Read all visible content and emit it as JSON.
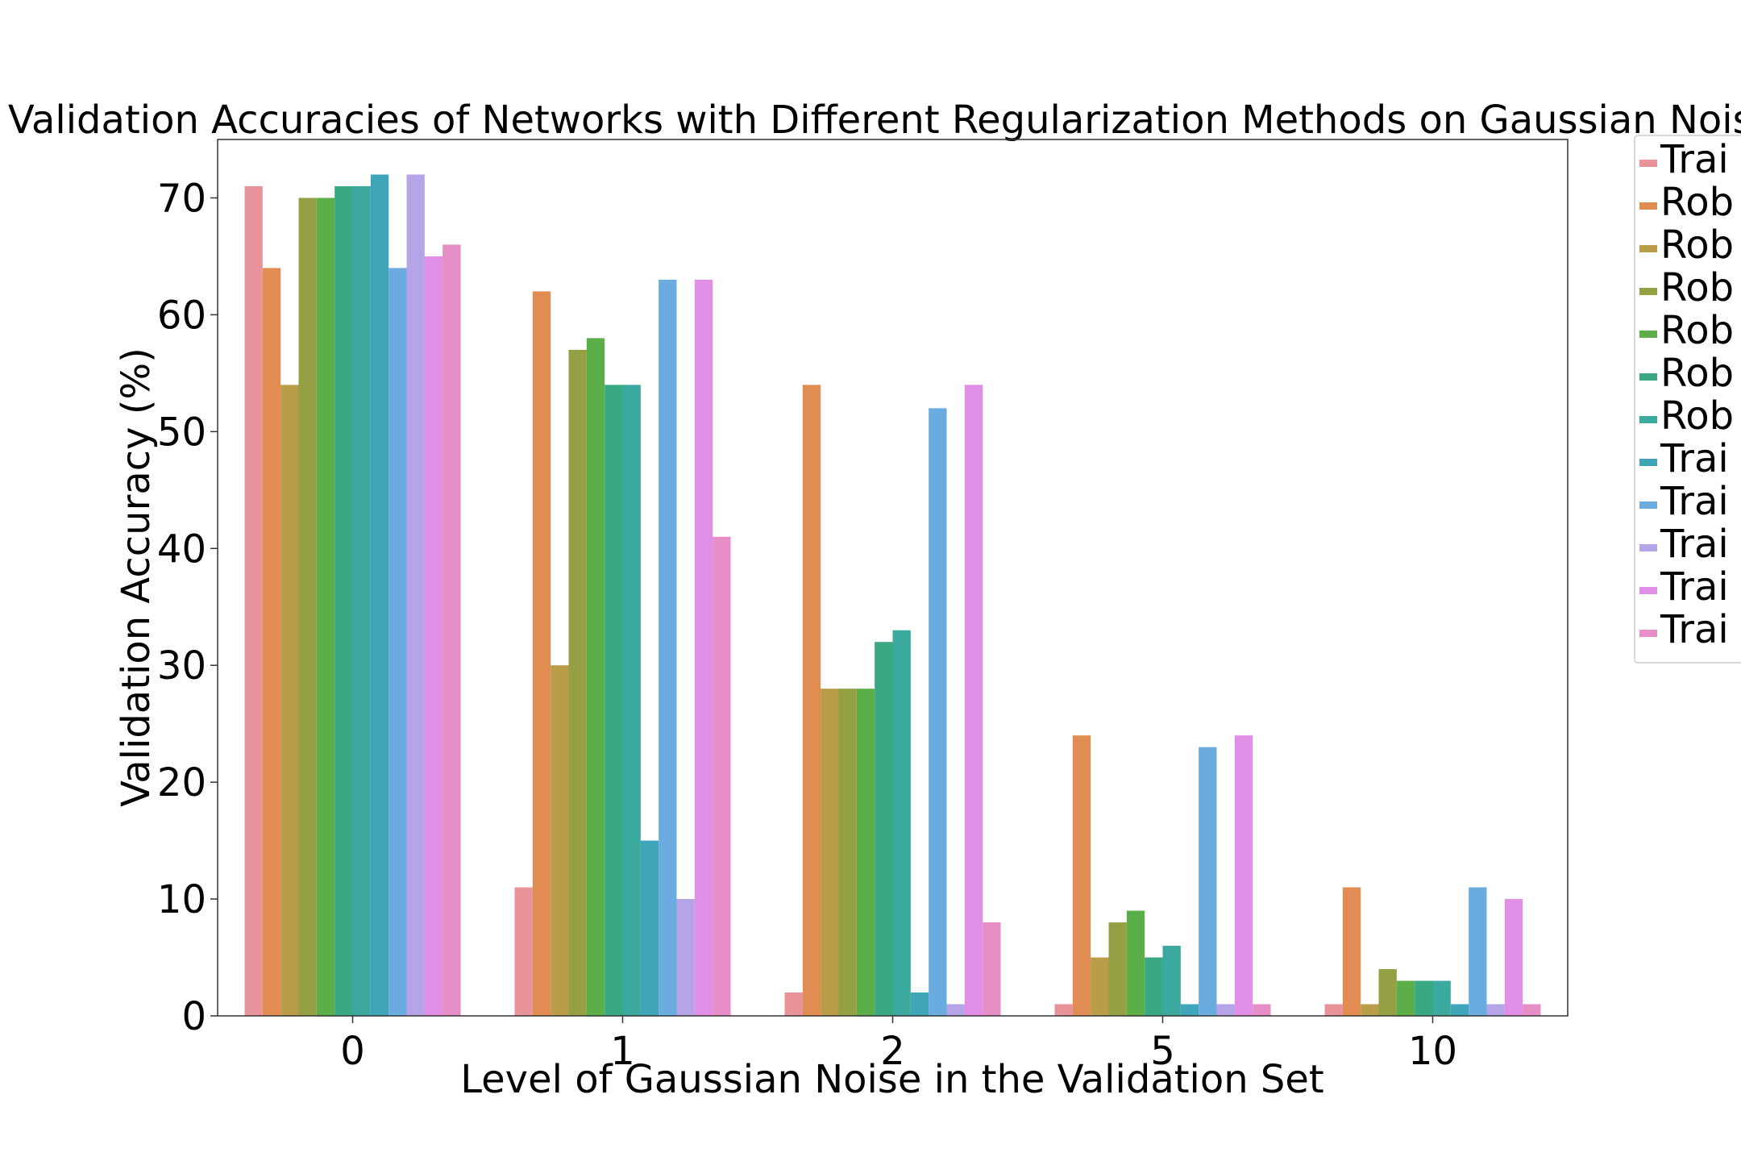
{
  "chart_data": {
    "type": "bar",
    "title": "Validation Accuracies of Networks with Different Regularization Methods on Gaussian Noise",
    "xlabel": "Level of Gaussian Noise in the Validation Set",
    "ylabel": "Validation Accuracy (%)",
    "categories": [
      "0",
      "1",
      "2",
      "5",
      "10"
    ],
    "ylim": [
      0,
      75
    ],
    "yticks": [
      0,
      10,
      20,
      30,
      40,
      50,
      60,
      70
    ],
    "grid": false,
    "legend_position": "right, outside plot, clipped",
    "series": [
      {
        "name": "Trai",
        "color": "#e8929a",
        "values": [
          71,
          11,
          2,
          1,
          1
        ]
      },
      {
        "name": "Rob",
        "color": "#e08c52",
        "values": [
          64,
          62,
          54,
          24,
          11
        ]
      },
      {
        "name": "Rob",
        "color": "#b99d48",
        "values": [
          54,
          30,
          28,
          5,
          1
        ]
      },
      {
        "name": "Rob",
        "color": "#94a043",
        "values": [
          70,
          57,
          28,
          8,
          4
        ]
      },
      {
        "name": "Rob",
        "color": "#5cae48",
        "values": [
          70,
          58,
          28,
          9,
          3
        ]
      },
      {
        "name": "Rob",
        "color": "#3aa883",
        "values": [
          71,
          54,
          32,
          5,
          3
        ]
      },
      {
        "name": "Rob",
        "color": "#3ca99f",
        "values": [
          71,
          54,
          33,
          6,
          3
        ]
      },
      {
        "name": "Trai",
        "color": "#3ea6b8",
        "values": [
          72,
          15,
          2,
          1,
          1
        ]
      },
      {
        "name": "Trai",
        "color": "#6aabe0",
        "values": [
          64,
          63,
          52,
          23,
          11
        ]
      },
      {
        "name": "Trai",
        "color": "#b5a5e8",
        "values": [
          72,
          10,
          1,
          1,
          1
        ]
      },
      {
        "name": "Trai",
        "color": "#e08ee6",
        "values": [
          65,
          63,
          54,
          24,
          10
        ]
      },
      {
        "name": "Trai",
        "color": "#e88ec6",
        "values": [
          66,
          41,
          8,
          1,
          1
        ]
      }
    ]
  }
}
